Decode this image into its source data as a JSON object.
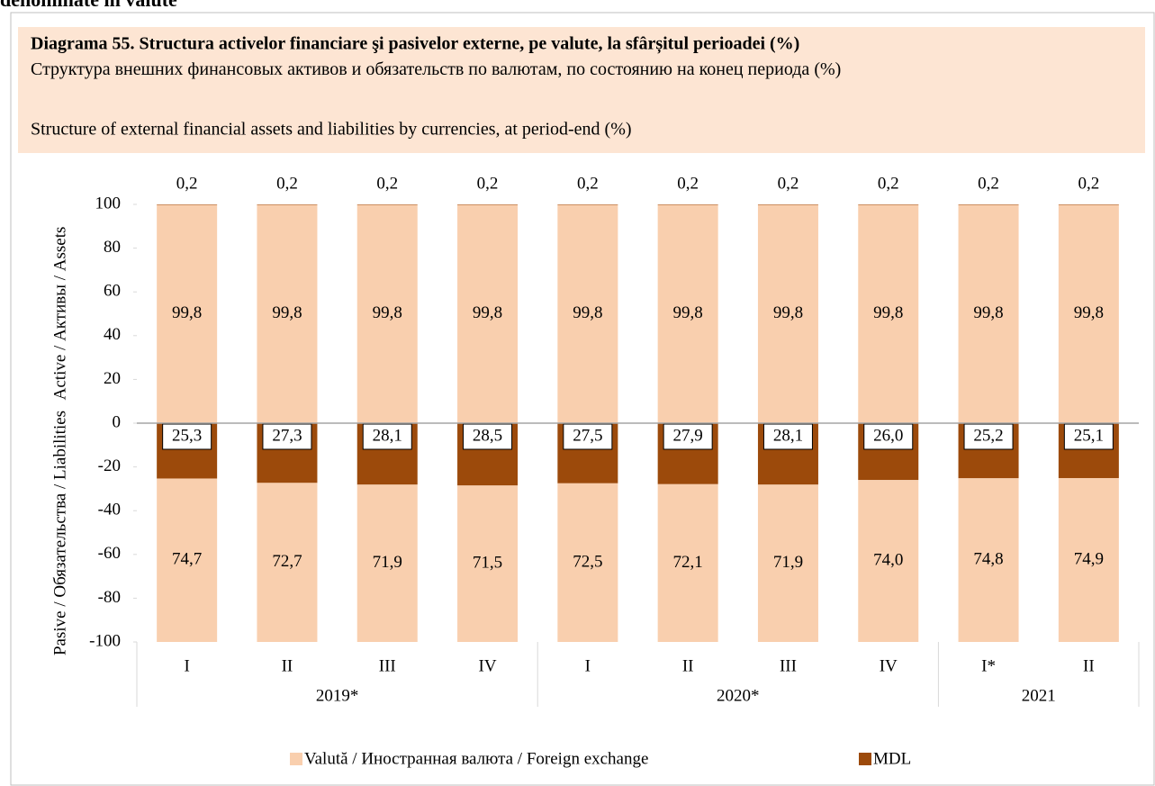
{
  "page_heading": "denominate în valute",
  "chart_data": {
    "type": "bar",
    "stacked": true,
    "title": "Diagrama 55. Structura activelor financiare şi pasivelor externe, pe valute, la sfârșitul perioadei (%)",
    "subtitle_ru": "Структура внешних финансовых активов и обязательств по валютам, по состоянию на конец периода (%)",
    "subtitle_en": "Structure of external financial assets and liabilities by currencies, at period-end (%)",
    "ylabel_assets": "Active / Активы / Assets",
    "ylabel_liabilities": "Pasive / Обязательства / Liabilities",
    "groups": [
      {
        "label": "2019*",
        "categories": [
          "I",
          "II",
          "III",
          "IV"
        ]
      },
      {
        "label": "2020*",
        "categories": [
          "I",
          "II",
          "III",
          "IV"
        ]
      },
      {
        "label": "2021",
        "categories": [
          "I*",
          "II"
        ]
      }
    ],
    "series": [
      {
        "name": "Valută / Иностранная валюта / Foreign exchange",
        "color": "#f9cfae",
        "values": [
          99.8,
          99.8,
          99.8,
          99.8,
          99.8,
          99.8,
          99.8,
          99.8,
          99.8,
          99.8
        ],
        "value_labels": [
          "99,8",
          "99,8",
          "99,8",
          "99,8",
          "99,8",
          "99,8",
          "99,8",
          "99,8",
          "99,8",
          "99,8"
        ],
        "liabilities": [
          -74.7,
          -72.7,
          -71.9,
          -71.5,
          -72.5,
          -72.1,
          -71.9,
          -74.0,
          -74.8,
          -74.9
        ],
        "liabilities_labels": [
          "74,7",
          "72,7",
          "71,9",
          "71,5",
          "72,5",
          "72,1",
          "71,9",
          "74,0",
          "74,8",
          "74,9"
        ]
      },
      {
        "name": "MDL",
        "color": "#9c4a0b",
        "values": [
          0.2,
          0.2,
          0.2,
          0.2,
          0.2,
          0.2,
          0.2,
          0.2,
          0.2,
          0.2
        ],
        "value_labels": [
          "0,2",
          "0,2",
          "0,2",
          "0,2",
          "0,2",
          "0,2",
          "0,2",
          "0,2",
          "0,2",
          "0,2"
        ],
        "liabilities": [
          -25.3,
          -27.3,
          -28.1,
          -28.5,
          -27.5,
          -27.9,
          -28.1,
          -26.0,
          -25.2,
          -25.1
        ],
        "liabilities_labels": [
          "25,3",
          "27,3",
          "28,1",
          "28,5",
          "27,5",
          "27,9",
          "28,1",
          "26,0",
          "25,2",
          "25,1"
        ]
      }
    ],
    "ylim": [
      -100,
      100
    ],
    "yticks": [
      -100,
      -80,
      -60,
      -40,
      -20,
      0,
      20,
      40,
      60,
      80,
      100
    ]
  }
}
